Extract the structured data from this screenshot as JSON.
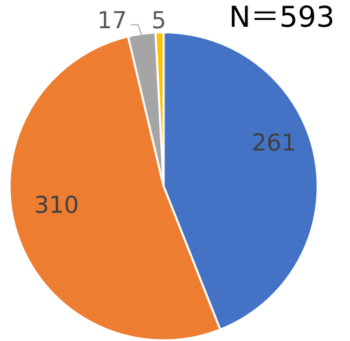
{
  "chart_data": {
    "type": "pie",
    "total_label": "N＝593",
    "slices": [
      {
        "label": "261",
        "value": 261,
        "color": "#4472C4"
      },
      {
        "label": "310",
        "value": 310,
        "color": "#ED7D31"
      },
      {
        "label": "17",
        "value": 17,
        "color": "#A5A5A5"
      },
      {
        "label": "5",
        "value": 5,
        "color": "#FFC000"
      }
    ],
    "data_label_color": "#404040",
    "small_label_color": "#595959",
    "start_angle": "12 o'clock",
    "direction": "clockwise",
    "legend": "none"
  }
}
